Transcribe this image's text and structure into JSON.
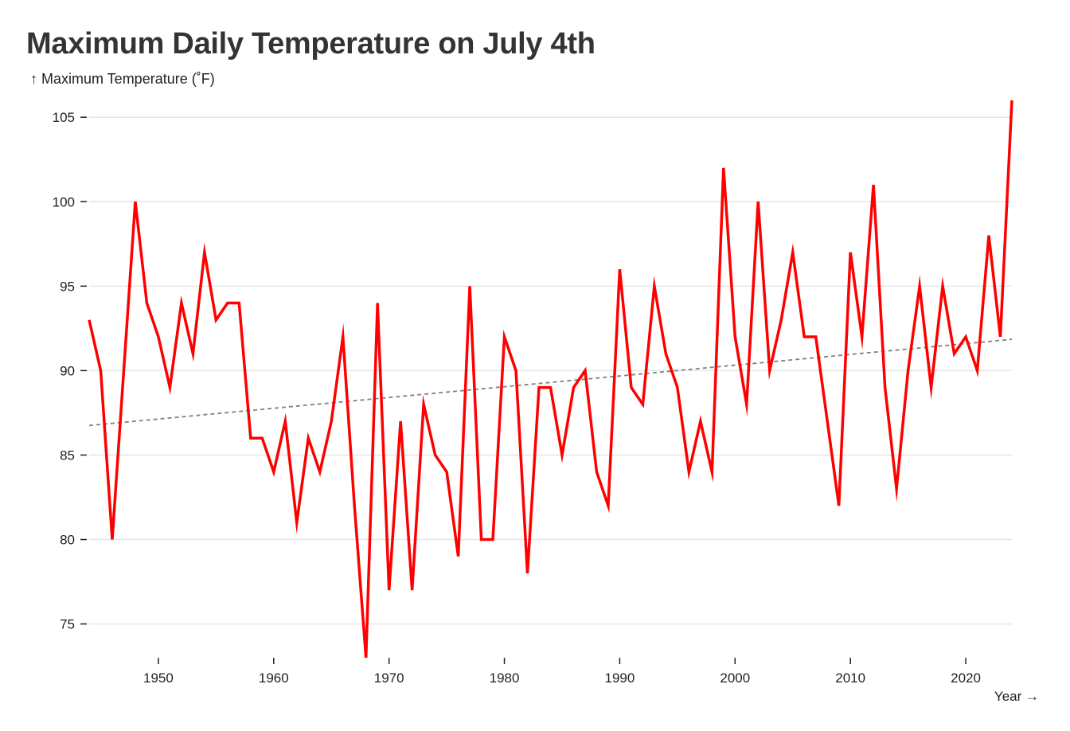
{
  "chart_data": {
    "type": "line",
    "title": "Maximum Daily Temperature on July 4th",
    "ylabel": "↑ Maximum Temperature (˚F)",
    "xlabel": "Year →",
    "xlim": [
      1944,
      2024
    ],
    "ylim": [
      73,
      106
    ],
    "x_ticks": [
      1950,
      1960,
      1970,
      1980,
      1990,
      2000,
      2010,
      2020
    ],
    "y_ticks": [
      75,
      80,
      85,
      90,
      95,
      100,
      105
    ],
    "grid": "horizontal",
    "series": [
      {
        "color": "#ff0000",
        "x": [
          1944,
          1945,
          1946,
          1947,
          1948,
          1949,
          1950,
          1951,
          1952,
          1953,
          1954,
          1955,
          1956,
          1957,
          1958,
          1959,
          1960,
          1961,
          1962,
          1963,
          1964,
          1965,
          1966,
          1967,
          1968,
          1969,
          1970,
          1971,
          1972,
          1973,
          1974,
          1975,
          1976,
          1977,
          1978,
          1979,
          1980,
          1981,
          1982,
          1983,
          1984,
          1985,
          1986,
          1987,
          1988,
          1989,
          1990,
          1991,
          1992,
          1993,
          1994,
          1995,
          1996,
          1997,
          1998,
          1999,
          2000,
          2001,
          2002,
          2003,
          2004,
          2005,
          2006,
          2007,
          2008,
          2009,
          2010,
          2011,
          2012,
          2013,
          2014,
          2015,
          2016,
          2017,
          2018,
          2019,
          2020,
          2021,
          2022,
          2023,
          2024
        ],
        "y": [
          93,
          90,
          80,
          90,
          100,
          94,
          92,
          89,
          94,
          91,
          97,
          93,
          94,
          94,
          86,
          86,
          84,
          87,
          81,
          86,
          84,
          87,
          92,
          82,
          73,
          94,
          77,
          87,
          77,
          88,
          85,
          84,
          79,
          95,
          80,
          80,
          92,
          90,
          78,
          89,
          89,
          85,
          89,
          90,
          84,
          82,
          96,
          89,
          88,
          95,
          91,
          89,
          84,
          87,
          84,
          102,
          92,
          88,
          100,
          90,
          93,
          97,
          92,
          92,
          87,
          82,
          97,
          92,
          101,
          89,
          83,
          90,
          95,
          89,
          95,
          91,
          92,
          90,
          98,
          92,
          106
        ]
      }
    ],
    "trendline": {
      "style": "dashed",
      "color": "#808080",
      "x": [
        1944,
        2024
      ],
      "y": [
        86.75,
        91.85
      ]
    }
  }
}
